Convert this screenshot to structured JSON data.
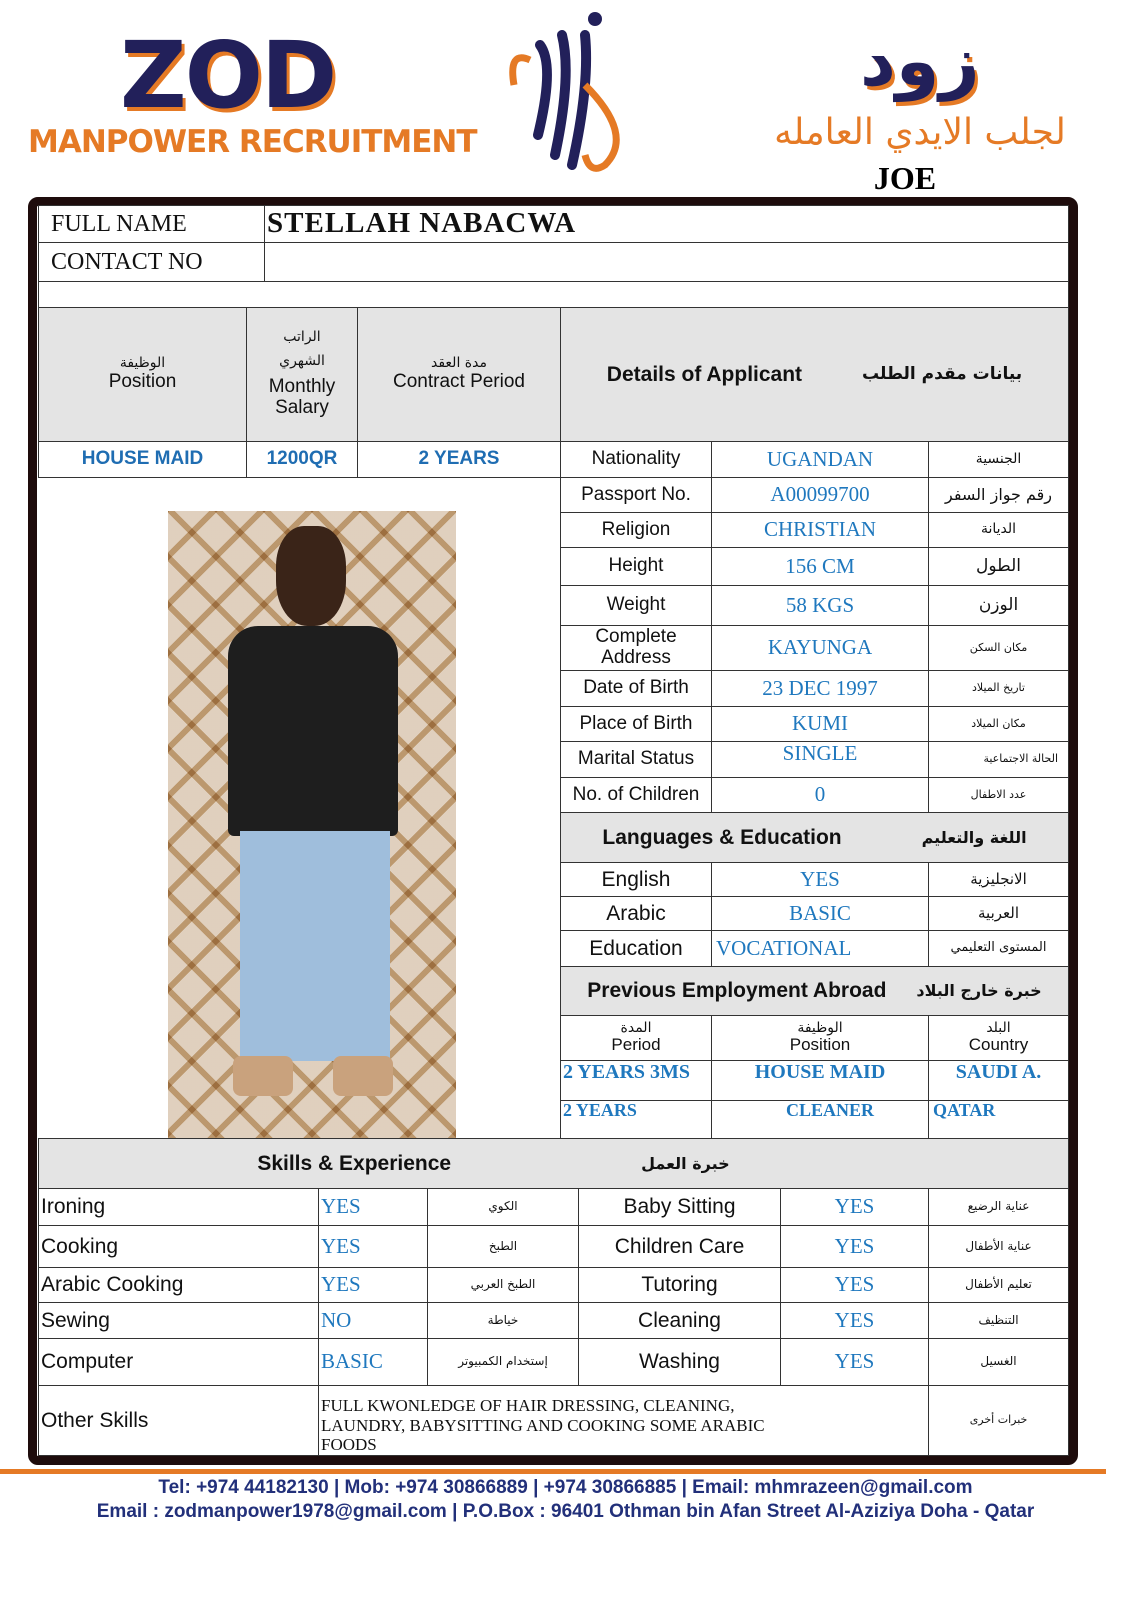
{
  "header": {
    "logo_en": "ZOD",
    "logo_en_sub": "MANPOWER RECRUITMENT",
    "logo_ar": "زود",
    "logo_ar_sub": "لجلب الايدي العامله",
    "agent": "JOE"
  },
  "colors": {
    "navy": "#22205a",
    "orange": "#e57a25",
    "value_blue": "#1f78be",
    "header_gray": "#e4e4e4"
  },
  "applicant": {
    "full_name_label": "FULL NAME",
    "full_name": "STELLAH NABACWA",
    "contact_label": "CONTACT NO",
    "contact": ""
  },
  "job": {
    "position_ar": "الوظيفة",
    "position_label": "Position",
    "salary_ar1": "الراتب",
    "salary_ar2": "الشهري",
    "salary_label": "Monthly Salary",
    "contract_ar": "مدة العقد",
    "contract_label": "Contract Period",
    "details_label": "Details of Applicant",
    "details_ar": "بيانات مقدم الطلب",
    "position": "HOUSE MAID",
    "salary": "1200QR",
    "contract": "2 YEARS"
  },
  "details": [
    {
      "label": "Nationality",
      "value": "UGANDAN",
      "ar": "الجنسية"
    },
    {
      "label": "Passport No.",
      "value": "A00099700",
      "ar": "رقم جواز السفر"
    },
    {
      "label": "Religion",
      "value": "CHRISTIAN",
      "ar": "الديانة"
    },
    {
      "label": "Height",
      "value": "156 CM",
      "ar": "الطول"
    },
    {
      "label": "Weight",
      "value": "58 KGS",
      "ar": "الوزن"
    },
    {
      "label": "Complete Address",
      "value": "KAYUNGA",
      "ar": "مكان السكن"
    },
    {
      "label": "Date of Birth",
      "value": "23 DEC 1997",
      "ar": "تاريخ الميلاد"
    },
    {
      "label": "Place of Birth",
      "value": "KUMI",
      "ar": "مكان الميلاد"
    },
    {
      "label": "Marital Status",
      "value": "SINGLE",
      "ar": "الحالة الاجتماعية"
    },
    {
      "label": "No. of Children",
      "value": "0",
      "ar": "عدد الاطفال"
    }
  ],
  "languages": {
    "title": "Languages & Education",
    "title_ar": "اللغة والتعليم",
    "rows": [
      {
        "label": "English",
        "value": "YES",
        "ar": "الانجليزية"
      },
      {
        "label": "Arabic",
        "value": "BASIC",
        "ar": "العربية"
      },
      {
        "label": "Education",
        "value": "VOCATIONAL",
        "ar": "المستوى التعليمي"
      }
    ]
  },
  "employment": {
    "title": "Previous Employment Abroad",
    "title_ar": "خبرة خارج البلاد",
    "cols": [
      {
        "ar": "المدة",
        "label": "Period"
      },
      {
        "ar": "الوظيفة",
        "label": "Position"
      },
      {
        "ar": "البلد",
        "label": "Country"
      }
    ],
    "rows": [
      {
        "period": "2 YEARS 3MS",
        "position": "HOUSE MAID",
        "country": "SAUDI A."
      },
      {
        "period": "2 YEARS",
        "position": "CLEANER",
        "country": "QATAR"
      }
    ]
  },
  "skills": {
    "title": "Skills & Experience",
    "title_ar": "خبرة العمل",
    "rows": [
      {
        "l": "Ironing",
        "lv": "YES",
        "lar": "الكوي",
        "r": "Baby Sitting",
        "rv": "YES",
        "rar": "عناية الرضيع"
      },
      {
        "l": "Cooking",
        "lv": "YES",
        "lar": "الطبخ",
        "r": "Children Care",
        "rv": "YES",
        "rar": "عناية الأطفال"
      },
      {
        "l": "Arabic Cooking",
        "lv": "YES",
        "lar": "الطبخ العربي",
        "r": "Tutoring",
        "rv": "YES",
        "rar": "تعليم الأطفال"
      },
      {
        "l": "Sewing",
        "lv": "NO",
        "lar": "خياطة",
        "r": "Cleaning",
        "rv": "YES",
        "rar": "التنظيف"
      },
      {
        "l": "Computer",
        "lv": "BASIC",
        "lar": "إستخدام الكمبيوتر",
        "r": "Washing",
        "rv": "YES",
        "rar": "الغسيل"
      }
    ],
    "other_label": "Other Skills",
    "other_value": "FULL KWONLEDGE OF HAIR DRESSING, CLEANING, LAUNDRY, BABYSITTING AND COOKING SOME ARABIC FOODS",
    "other_ar": "خبرات أخرى"
  },
  "footer": {
    "line1": "Tel: +974 44182130 | Mob: +974 30866889 | +974 30866885 | Email: mhmrazeen@gmail.com",
    "line2": "Email :  zodmanpower1978@gmail.com | P.O.Box : 96401  Othman bin Afan Street Al-Aziziya Doha - Qatar"
  }
}
